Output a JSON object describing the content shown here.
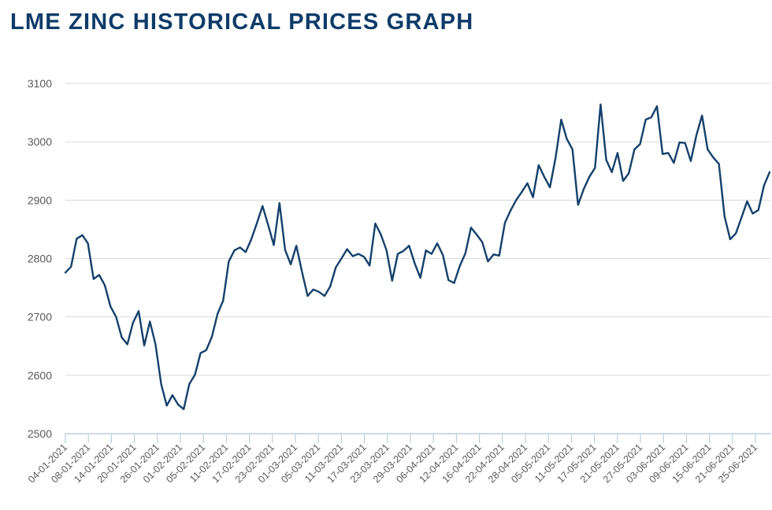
{
  "page": {
    "title": "LME ZINC HISTORICAL PRICES GRAPH"
  },
  "colors": {
    "title": "#0f3b69",
    "line": "#15406b",
    "grid": "#d9d9d9",
    "axis": "#bccde0",
    "tick_text": "#595959"
  },
  "chart_data": {
    "type": "line",
    "title": "LME ZINC HISTORICAL PRICES GRAPH",
    "xlabel": "",
    "ylabel": "",
    "ylim": [
      2500,
      3100
    ],
    "yticks": [
      2500,
      2600,
      2700,
      2800,
      2900,
      3000,
      3100
    ],
    "grid": "horizontal",
    "legend": "none",
    "xtick_labels": [
      "04-01-2021",
      "08-01-2021",
      "14-01-2021",
      "20-01-2021",
      "26-01-2021",
      "01-02-2021",
      "05-02-2021",
      "11-02-2021",
      "17-02-2021",
      "23-02-2021",
      "01-03-2021",
      "05-03-2021",
      "11-03-2021",
      "17-03-2021",
      "23-03-2021",
      "29-03-2021",
      "06-04-2021",
      "12-04-2021",
      "16-04-2021",
      "22-04-2021",
      "28-04-2021",
      "05-05-2021",
      "11-05-2021",
      "17-05-2021",
      "21-05-2021",
      "27-05-2021",
      "03-06-2021",
      "09-06-2021",
      "15-06-2021",
      "21-06-2021",
      "25-06-2021"
    ],
    "series": [
      {
        "name": "LME Zinc",
        "values": [
          2776,
          2786,
          2834,
          2840,
          2826,
          2765,
          2772,
          2754,
          2718,
          2700,
          2665,
          2653,
          2690,
          2710,
          2651,
          2692,
          2653,
          2585,
          2548,
          2566,
          2550,
          2542,
          2585,
          2601,
          2638,
          2643,
          2666,
          2705,
          2728,
          2795,
          2814,
          2819,
          2811,
          2833,
          2861,
          2890,
          2857,
          2823,
          2895,
          2815,
          2790,
          2822,
          2777,
          2736,
          2747,
          2743,
          2736,
          2752,
          2785,
          2800,
          2816,
          2804,
          2808,
          2803,
          2788,
          2860,
          2841,
          2814,
          2762,
          2808,
          2813,
          2822,
          2792,
          2767,
          2814,
          2808,
          2826,
          2806,
          2763,
          2758,
          2787,
          2809,
          2853,
          2841,
          2828,
          2795,
          2807,
          2805,
          2861,
          2882,
          2900,
          2914,
          2929,
          2905,
          2960,
          2940,
          2922,
          2972,
          3038,
          3005,
          2987,
          2892,
          2919,
          2940,
          2955,
          3064,
          2969,
          2948,
          2981,
          2933,
          2946,
          2987,
          2996,
          3038,
          3042,
          3061,
          2979,
          2981,
          2964,
          2999,
          2998,
          2967,
          3011,
          3045,
          2987,
          2973,
          2962,
          2872,
          2833,
          2843,
          2870,
          2898,
          2877,
          2883,
          2925,
          2948
        ]
      }
    ]
  }
}
